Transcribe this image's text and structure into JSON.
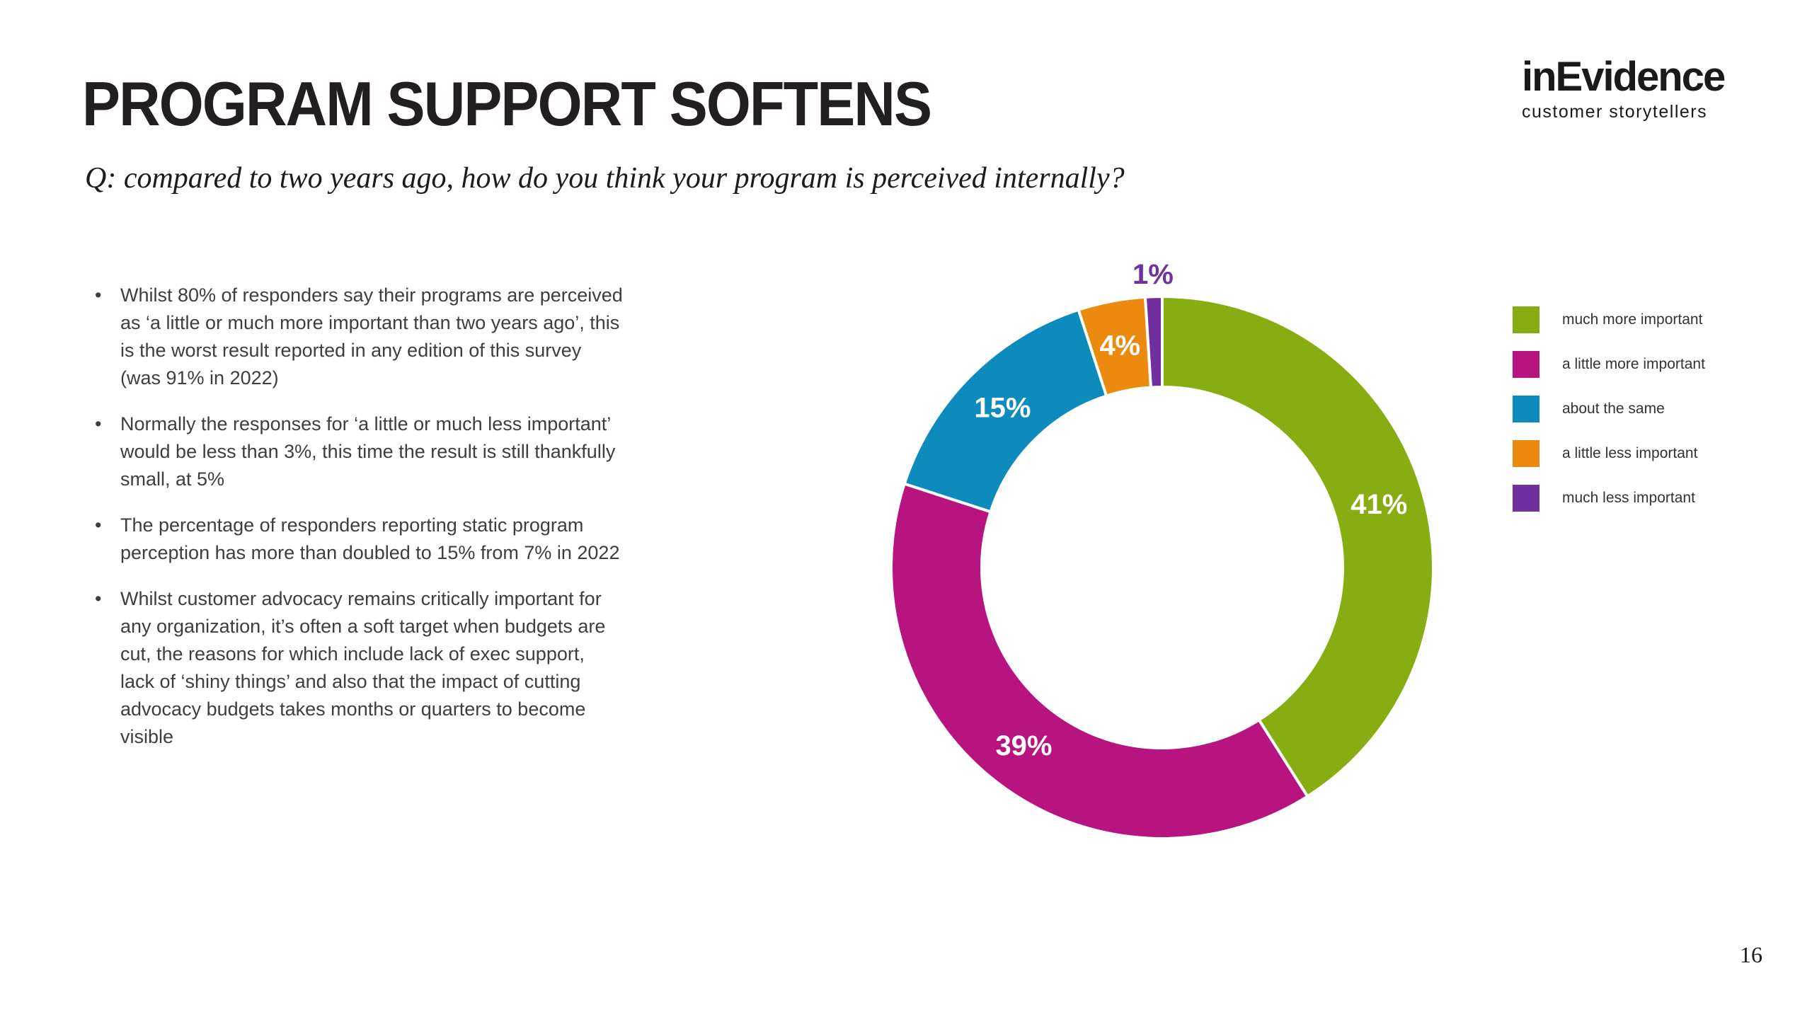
{
  "slide": {
    "title": "PROGRAM SUPPORT SOFTENS",
    "subtitle": "Q: compared to two years ago, how do you think your program is perceived internally?",
    "page_number": "16"
  },
  "logo": {
    "name": "inEvidence",
    "tagline": "customer storytellers"
  },
  "bullets": [
    "Whilst 80% of responders say their programs are perceived as ‘a little or much more important than two years ago’, this is the worst result reported in any edition of this survey (was 91% in 2022)",
    "Normally the responses for ‘a little or much less important’ would be less than 3%, this time the result is still thankfully small, at 5%",
    "The percentage of responders reporting static program perception has more than doubled to 15% from 7% in 2022",
    "Whilst customer advocacy remains critically important for any organization, it’s often a soft target when budgets are cut, the reasons for which include lack of exec support, lack of ‘shiny things’ and also that the impact of cutting advocacy budgets takes months or quarters to become visible"
  ],
  "chart_data": {
    "type": "pie",
    "subtype": "donut",
    "title": "",
    "categories": [
      "much more important",
      "a little more important",
      "about the same",
      "a little less important",
      "much less important"
    ],
    "values": [
      41,
      39,
      15,
      4,
      1
    ],
    "display_labels": [
      "41%",
      "39%",
      "15%",
      "4%",
      "1%"
    ],
    "colors": [
      "#86AD12",
      "#B81480",
      "#0E8BBD",
      "#EB8A0E",
      "#7030A0"
    ],
    "label_positions": [
      "inside",
      "inside",
      "inside",
      "inside",
      "outside"
    ],
    "start_angle_deg": 0,
    "direction": "clockwise",
    "legend_position": "right",
    "outer_radius": 383,
    "inner_radius": 255,
    "slice_gap_color": "#ffffff"
  }
}
